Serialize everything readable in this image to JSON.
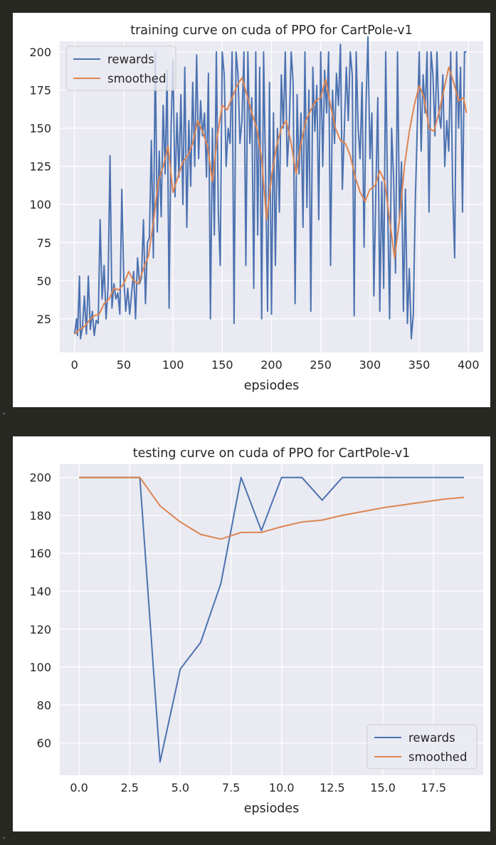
{
  "theme": {
    "page_bg": "#272822",
    "plot_bg": "#eaeaf2",
    "grid": "#ffffff",
    "rewards_color": "#4c72b0",
    "smoothed_color": "#dd8452"
  },
  "scroll_indicator_icon": "left-triangle-icon",
  "chart_data": [
    {
      "type": "line",
      "title": "training curve on cuda of PPO for CartPole-v1",
      "xlabel": "epsiodes",
      "ylabel": "",
      "xlim": [
        -15,
        415
      ],
      "ylim": [
        3,
        207
      ],
      "xticks": [
        0,
        50,
        100,
        150,
        200,
        250,
        300,
        350,
        400
      ],
      "xtick_labels": [
        "0",
        "50",
        "100",
        "150",
        "200",
        "250",
        "300",
        "350",
        "400"
      ],
      "yticks": [
        25,
        50,
        75,
        100,
        125,
        150,
        175,
        200
      ],
      "ytick_labels": [
        "25",
        "50",
        "75",
        "100",
        "125",
        "150",
        "175",
        "200"
      ],
      "grid": true,
      "legend_position": "upper-left",
      "legend": [
        "rewards",
        "smoothed"
      ],
      "series": [
        {
          "name": "rewards",
          "x": [
            0,
            2,
            3,
            5,
            6,
            8,
            10,
            12,
            14,
            16,
            18,
            20,
            22,
            24,
            26,
            28,
            30,
            32,
            34,
            36,
            38,
            40,
            42,
            44,
            46,
            48,
            50,
            52,
            54,
            56,
            58,
            60,
            62,
            64,
            66,
            68,
            70,
            72,
            74,
            76,
            78,
            80,
            82,
            84,
            86,
            88,
            90,
            92,
            94,
            96,
            98,
            100,
            102,
            104,
            106,
            108,
            110,
            112,
            114,
            116,
            118,
            120,
            122,
            124,
            126,
            128,
            130,
            132,
            134,
            136,
            138,
            140,
            142,
            144,
            146,
            148,
            150,
            152,
            154,
            156,
            158,
            160,
            162,
            164,
            166,
            168,
            170,
            172,
            174,
            176,
            178,
            180,
            182,
            184,
            186,
            188,
            190,
            192,
            194,
            196,
            198,
            200,
            202,
            204,
            206,
            208,
            210,
            212,
            214,
            216,
            218,
            220,
            222,
            224,
            226,
            228,
            230,
            232,
            234,
            236,
            238,
            240,
            242,
            244,
            246,
            248,
            250,
            252,
            254,
            256,
            258,
            260,
            262,
            264,
            266,
            268,
            270,
            272,
            274,
            276,
            278,
            280,
            282,
            284,
            286,
            288,
            290,
            292,
            294,
            296,
            298,
            300,
            302,
            304,
            306,
            308,
            310,
            312,
            314,
            316,
            318,
            320,
            322,
            324,
            326,
            328,
            330,
            332,
            334,
            336,
            338,
            340,
            342,
            344,
            346,
            348,
            350,
            352,
            354,
            356,
            358,
            360,
            362,
            364,
            366,
            368,
            370,
            372,
            374,
            376,
            378,
            380,
            382,
            384,
            386,
            388,
            390,
            392,
            394,
            396,
            398
          ],
          "values": [
            15,
            25,
            14,
            53,
            12,
            19,
            40,
            15,
            53,
            18,
            30,
            14,
            24,
            22,
            90,
            38,
            60,
            25,
            45,
            132,
            32,
            48,
            38,
            42,
            28,
            110,
            52,
            30,
            45,
            28,
            42,
            56,
            25,
            65,
            48,
            52,
            90,
            35,
            75,
            78,
            142,
            65,
            200,
            82,
            135,
            92,
            165,
            120,
            188,
            32,
            150,
            195,
            105,
            160,
            118,
            172,
            100,
            190,
            85,
            155,
            112,
            180,
            125,
            198,
            130,
            168,
            145,
            160,
            118,
            186,
            25,
            150,
            80,
            200,
            95,
            60,
            200,
            185,
            125,
            150,
            140,
            200,
            22,
            200,
            185,
            140,
            155,
            200,
            60,
            200,
            140,
            170,
            45,
            200,
            80,
            190,
            25,
            200,
            120,
            30,
            180,
            28,
            160,
            60,
            150,
            95,
            185,
            150,
            200,
            125,
            150,
            200,
            180,
            35,
            172,
            120,
            160,
            85,
            200,
            98,
            175,
            30,
            190,
            148,
            178,
            90,
            200,
            125,
            188,
            160,
            200,
            60,
            175,
            140,
            186,
            165,
            205,
            110,
            150,
            190,
            155,
            200,
            185,
            27,
            200,
            150,
            130,
            180,
            72,
            165,
            210,
            130,
            160,
            40,
            110,
            170,
            30,
            115,
            45,
            200,
            98,
            25,
            150,
            118,
            55,
            200,
            90,
            128,
            30,
            110,
            22,
            58,
            12,
            28,
            100,
            150,
            200,
            135,
            185,
            160,
            200,
            95,
            200,
            185,
            145,
            200,
            160,
            150,
            185,
            125,
            155,
            135,
            200,
            110,
            65,
            200,
            150,
            190,
            95,
            200,
            200
          ],
          "color": "#4c72b0"
        },
        {
          "name": "smoothed",
          "x": [
            0,
            5,
            10,
            15,
            20,
            25,
            30,
            35,
            40,
            45,
            50,
            55,
            60,
            65,
            70,
            75,
            80,
            85,
            90,
            95,
            100,
            105,
            110,
            115,
            120,
            125,
            130,
            135,
            140,
            145,
            150,
            155,
            160,
            165,
            170,
            175,
            180,
            185,
            190,
            195,
            200,
            205,
            210,
            215,
            220,
            225,
            230,
            235,
            240,
            245,
            250,
            255,
            260,
            265,
            270,
            275,
            280,
            285,
            290,
            295,
            300,
            305,
            310,
            315,
            320,
            325,
            330,
            335,
            340,
            345,
            350,
            355,
            360,
            365,
            370,
            375,
            380,
            385,
            390,
            395,
            398
          ],
          "values": [
            15,
            18,
            20,
            24,
            27,
            28,
            35,
            38,
            45,
            44,
            48,
            56,
            50,
            48,
            58,
            66,
            88,
            115,
            125,
            138,
            108,
            118,
            128,
            132,
            140,
            155,
            148,
            138,
            115,
            145,
            165,
            162,
            170,
            178,
            183,
            172,
            160,
            150,
            130,
            90,
            118,
            138,
            150,
            155,
            140,
            120,
            140,
            155,
            162,
            168,
            170,
            182,
            165,
            150,
            142,
            140,
            132,
            118,
            108,
            102,
            110,
            112,
            122,
            115,
            90,
            65,
            90,
            125,
            148,
            165,
            178,
            170,
            150,
            148,
            160,
            175,
            190,
            180,
            168,
            170,
            160
          ],
          "color": "#dd8452"
        }
      ]
    },
    {
      "type": "line",
      "title": "testing curve on cuda of PPO for CartPole-v1",
      "xlabel": "epsiodes",
      "ylabel": "",
      "xlim": [
        -0.95,
        19.95
      ],
      "ylim": [
        43,
        207
      ],
      "xticks": [
        0,
        2.5,
        5,
        7.5,
        10,
        12.5,
        15,
        17.5
      ],
      "xtick_labels": [
        "0.0",
        "2.5",
        "5.0",
        "7.5",
        "10.0",
        "12.5",
        "15.0",
        "17.5"
      ],
      "yticks": [
        60,
        80,
        100,
        120,
        140,
        160,
        180,
        200
      ],
      "ytick_labels": [
        "60",
        "80",
        "100",
        "120",
        "140",
        "160",
        "180",
        "200"
      ],
      "grid": true,
      "legend_position": "lower-right",
      "legend": [
        "rewards",
        "smoothed"
      ],
      "series": [
        {
          "name": "rewards",
          "x": [
            0,
            1,
            2,
            3,
            4,
            5,
            6,
            7,
            8,
            9,
            10,
            11,
            12,
            13,
            14,
            15,
            16,
            17,
            18,
            19
          ],
          "values": [
            200,
            200,
            200,
            200,
            50,
            99,
            113,
            144,
            200,
            172,
            200,
            200,
            188,
            200,
            200,
            200,
            200,
            200,
            200,
            200
          ],
          "color": "#4c72b0"
        },
        {
          "name": "smoothed",
          "x": [
            0,
            1,
            2,
            3,
            4,
            5,
            6,
            7,
            8,
            9,
            10,
            11,
            12,
            13,
            14,
            15,
            16,
            17,
            18,
            19
          ],
          "values": [
            200,
            200,
            200,
            200,
            185,
            176.5,
            170,
            167.5,
            171,
            171,
            174,
            176.5,
            177.5,
            180,
            182,
            184,
            185.5,
            187,
            188.5,
            189.5
          ],
          "color": "#dd8452"
        }
      ]
    }
  ]
}
